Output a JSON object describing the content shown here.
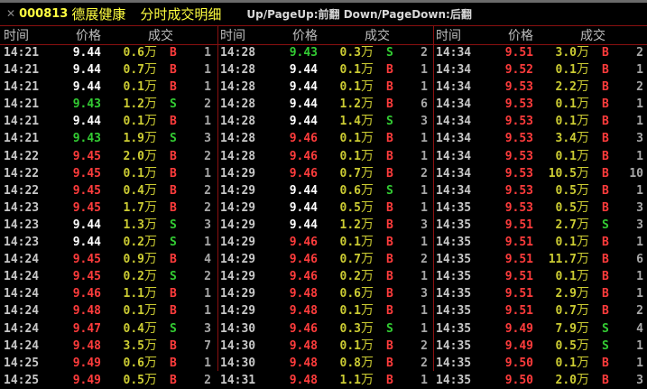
{
  "title": {
    "close_icon": "close-icon",
    "code": "000813",
    "name": "德展健康",
    "subtitle": "分时成交明细",
    "hint": "Up/PageUp:前翻 Down/PageDown:后翻"
  },
  "columns": {
    "time": "时间",
    "price": "价格",
    "volume": "成交"
  },
  "unit": "万",
  "colors": {
    "up": "#ff3c3c",
    "down": "#33cc33",
    "flat": "#ffffff",
    "volume": "#cccc33",
    "title": "#ffff40",
    "grid": "#8a1010"
  },
  "panels": [
    [
      [
        "14:21",
        "9.44",
        "0.6",
        "B",
        "1",
        "w"
      ],
      [
        "14:21",
        "9.44",
        "0.7",
        "B",
        "1",
        "w"
      ],
      [
        "14:21",
        "9.44",
        "0.1",
        "B",
        "1",
        "w"
      ],
      [
        "14:21",
        "9.43",
        "1.2",
        "S",
        "2",
        "g"
      ],
      [
        "14:21",
        "9.44",
        "0.1",
        "B",
        "1",
        "w"
      ],
      [
        "14:21",
        "9.43",
        "1.9",
        "S",
        "3",
        "g"
      ],
      [
        "14:22",
        "9.45",
        "2.0",
        "B",
        "2",
        "r"
      ],
      [
        "14:22",
        "9.45",
        "0.1",
        "B",
        "1",
        "r"
      ],
      [
        "14:22",
        "9.45",
        "0.4",
        "B",
        "2",
        "r"
      ],
      [
        "14:23",
        "9.45",
        "1.7",
        "B",
        "2",
        "r"
      ],
      [
        "14:23",
        "9.44",
        "1.3",
        "S",
        "3",
        "w"
      ],
      [
        "14:23",
        "9.44",
        "0.2",
        "S",
        "1",
        "w"
      ],
      [
        "14:24",
        "9.45",
        "0.9",
        "B",
        "4",
        "r"
      ],
      [
        "14:24",
        "9.45",
        "0.2",
        "S",
        "2",
        "r"
      ],
      [
        "14:24",
        "9.46",
        "1.1",
        "B",
        "1",
        "r"
      ],
      [
        "14:24",
        "9.48",
        "0.1",
        "B",
        "1",
        "r"
      ],
      [
        "14:24",
        "9.47",
        "0.4",
        "S",
        "3",
        "r"
      ],
      [
        "14:24",
        "9.48",
        "3.5",
        "B",
        "7",
        "r"
      ],
      [
        "14:25",
        "9.49",
        "0.6",
        "B",
        "1",
        "r"
      ],
      [
        "14:25",
        "9.49",
        "0.5",
        "B",
        "2",
        "r"
      ]
    ],
    [
      [
        "14:28",
        "9.43",
        "0.3",
        "S",
        "2",
        "g"
      ],
      [
        "14:28",
        "9.44",
        "0.1",
        "B",
        "1",
        "w"
      ],
      [
        "14:28",
        "9.44",
        "0.1",
        "B",
        "1",
        "w"
      ],
      [
        "14:28",
        "9.44",
        "1.2",
        "B",
        "6",
        "w"
      ],
      [
        "14:28",
        "9.44",
        "1.4",
        "S",
        "3",
        "w"
      ],
      [
        "14:28",
        "9.46",
        "0.1",
        "B",
        "1",
        "r"
      ],
      [
        "14:28",
        "9.46",
        "0.1",
        "B",
        "1",
        "r"
      ],
      [
        "14:29",
        "9.46",
        "0.7",
        "B",
        "2",
        "r"
      ],
      [
        "14:29",
        "9.44",
        "0.6",
        "S",
        "1",
        "w"
      ],
      [
        "14:29",
        "9.44",
        "0.5",
        "B",
        "1",
        "w"
      ],
      [
        "14:29",
        "9.44",
        "1.2",
        "B",
        "3",
        "w"
      ],
      [
        "14:29",
        "9.46",
        "0.1",
        "B",
        "1",
        "r"
      ],
      [
        "14:29",
        "9.46",
        "0.7",
        "B",
        "2",
        "r"
      ],
      [
        "14:29",
        "9.46",
        "0.2",
        "B",
        "1",
        "r"
      ],
      [
        "14:29",
        "9.48",
        "0.6",
        "B",
        "3",
        "r"
      ],
      [
        "14:29",
        "9.48",
        "0.1",
        "B",
        "1",
        "r"
      ],
      [
        "14:30",
        "9.46",
        "0.3",
        "S",
        "1",
        "r"
      ],
      [
        "14:30",
        "9.48",
        "0.1",
        "B",
        "2",
        "r"
      ],
      [
        "14:30",
        "9.48",
        "0.8",
        "B",
        "2",
        "r"
      ],
      [
        "14:31",
        "9.48",
        "1.1",
        "B",
        "1",
        "r"
      ]
    ],
    [
      [
        "14:34",
        "9.51",
        "3.0",
        "B",
        "2",
        "r"
      ],
      [
        "14:34",
        "9.52",
        "0.1",
        "B",
        "1",
        "r"
      ],
      [
        "14:34",
        "9.53",
        "2.2",
        "B",
        "2",
        "r"
      ],
      [
        "14:34",
        "9.53",
        "0.1",
        "B",
        "1",
        "r"
      ],
      [
        "14:34",
        "9.53",
        "0.1",
        "B",
        "1",
        "r"
      ],
      [
        "14:34",
        "9.53",
        "3.4",
        "B",
        "3",
        "r"
      ],
      [
        "14:34",
        "9.53",
        "0.1",
        "B",
        "1",
        "r"
      ],
      [
        "14:34",
        "9.53",
        "10.5",
        "B",
        "10",
        "r"
      ],
      [
        "14:34",
        "9.53",
        "0.5",
        "B",
        "1",
        "r"
      ],
      [
        "14:35",
        "9.53",
        "0.5",
        "B",
        "3",
        "r"
      ],
      [
        "14:35",
        "9.51",
        "2.7",
        "S",
        "3",
        "r"
      ],
      [
        "14:35",
        "9.51",
        "0.1",
        "B",
        "1",
        "r"
      ],
      [
        "14:35",
        "9.51",
        "11.7",
        "B",
        "6",
        "r"
      ],
      [
        "14:35",
        "9.51",
        "0.1",
        "B",
        "1",
        "r"
      ],
      [
        "14:35",
        "9.51",
        "2.9",
        "B",
        "1",
        "r"
      ],
      [
        "14:35",
        "9.51",
        "0.7",
        "B",
        "2",
        "r"
      ],
      [
        "14:35",
        "9.49",
        "7.9",
        "S",
        "4",
        "r"
      ],
      [
        "14:35",
        "9.49",
        "0.5",
        "S",
        "1",
        "r"
      ],
      [
        "14:35",
        "9.50",
        "0.1",
        "B",
        "1",
        "r"
      ],
      [
        "14:35",
        "9.50",
        "2.0",
        "B",
        "3",
        "r"
      ]
    ]
  ]
}
